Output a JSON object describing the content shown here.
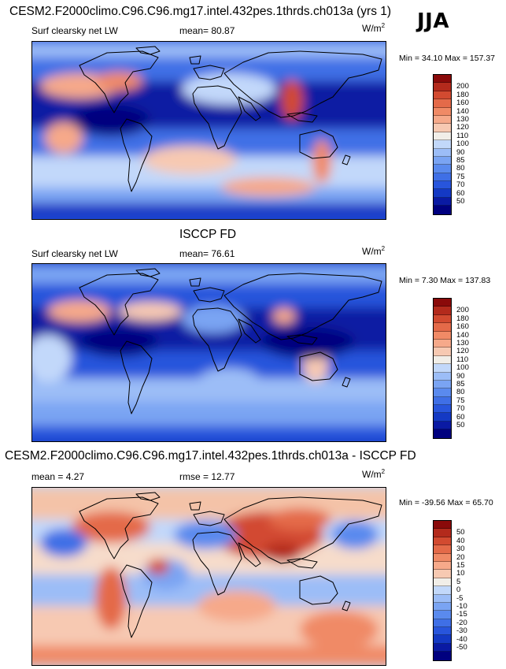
{
  "season": "JJA",
  "units": "W/m",
  "units_exp": "2",
  "colors": {
    "scale_abs": [
      "#00007f",
      "#0a1aa3",
      "#1439c4",
      "#2855dc",
      "#3f6fe6",
      "#5a8aee",
      "#7aa4f3",
      "#9cbdf7",
      "#c2d8fa",
      "#f1eee8",
      "#f7c9b2",
      "#f6a98a",
      "#f08a66",
      "#e46a49",
      "#d24a30",
      "#b32a1c",
      "#8a0a0a"
    ],
    "scale_diff": [
      "#00007f",
      "#0a1aa3",
      "#1439c4",
      "#2855dc",
      "#3f6fe6",
      "#5a8aee",
      "#7aa4f3",
      "#9cbdf7",
      "#c2d8fa",
      "#f1eee8",
      "#f7c9b2",
      "#f6a98a",
      "#f08a66",
      "#e46a49",
      "#d24a30",
      "#b32a1c",
      "#8a0a0a"
    ]
  },
  "chart_data": [
    {
      "type": "heatmap",
      "title": "CESM2.F2000climo.C96.C96.mg17.intel.432pes.1thrds.ch013a (yrs 1)",
      "left_label": "Surf clearsky net LW",
      "mean_label": "mean=",
      "mean": "80.87",
      "min_label": "Min =",
      "min": "34.10",
      "max_label": "Max =",
      "max": "157.37",
      "levels": [
        "200",
        "180",
        "160",
        "140",
        "130",
        "120",
        "110",
        "100",
        "90",
        "85",
        "80",
        "75",
        "70",
        "60",
        "50"
      ]
    },
    {
      "type": "heatmap",
      "title": "ISCCP FD",
      "left_label": "Surf clearsky net LW",
      "mean_label": "mean=",
      "mean": "76.61",
      "min_label": "Min =",
      "min": "7.30",
      "max_label": "Max =",
      "max": "137.83",
      "levels": [
        "200",
        "180",
        "160",
        "140",
        "130",
        "120",
        "110",
        "100",
        "90",
        "85",
        "80",
        "75",
        "70",
        "60",
        "50"
      ]
    },
    {
      "type": "heatmap",
      "title": "CESM2.F2000climo.C96.C96.mg17.intel.432pes.1thrds.ch013a - ISCCP FD",
      "mean_label": "mean =",
      "mean": "4.27",
      "rmse_label": "rmse =",
      "rmse": "12.77",
      "min_label": "Min =",
      "min": "-39.56",
      "max_label": "Max =",
      "max": "65.70",
      "levels": [
        "50",
        "40",
        "30",
        "20",
        "15",
        "10",
        "5",
        "0",
        "-5",
        "-10",
        "-15",
        "-20",
        "-30",
        "-40",
        "-50"
      ]
    }
  ]
}
